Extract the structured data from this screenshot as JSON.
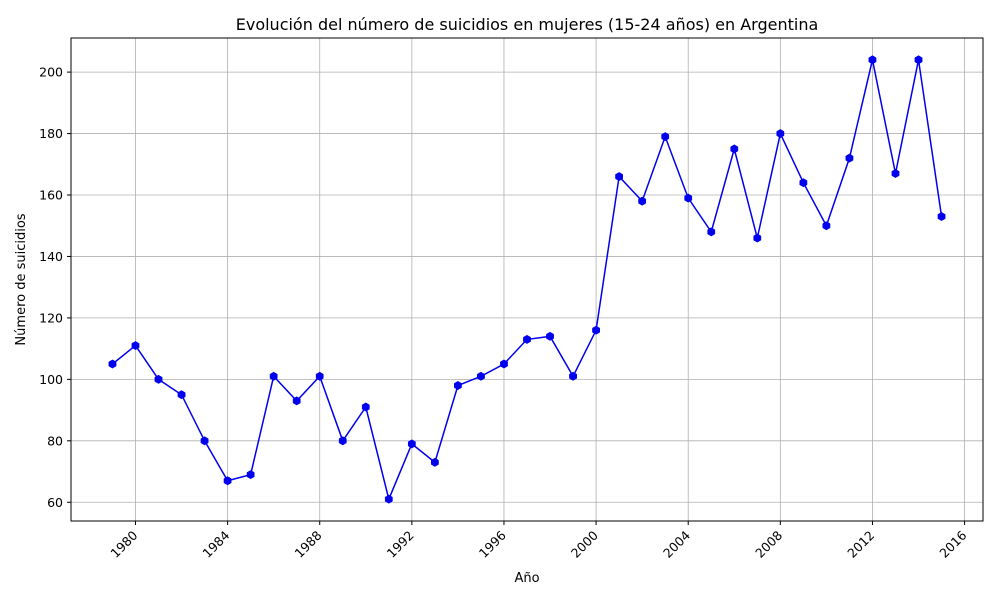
{
  "chart_data": {
    "type": "line",
    "title": "Evolución del número de suicidios en mujeres (15-24 años) en Argentina",
    "xlabel": "Año",
    "ylabel": "Número de suicidios",
    "xlim": [
      1977.2,
      2016.8
    ],
    "ylim": [
      53.9,
      211.1
    ],
    "x_ticks": [
      1980,
      1984,
      1988,
      1992,
      1996,
      2000,
      2004,
      2008,
      2012,
      2016
    ],
    "y_ticks": [
      60,
      80,
      100,
      120,
      140,
      160,
      180,
      200
    ],
    "grid": true,
    "line_color": "#0000ee",
    "marker": "hexagon",
    "series": [
      {
        "x": [
          1979,
          1980,
          1981,
          1982,
          1983,
          1984,
          1985,
          1986,
          1987,
          1988,
          1989,
          1990,
          1991,
          1992,
          1993,
          1994,
          1995,
          1996,
          1997,
          1998,
          1999,
          2000,
          2001,
          2002,
          2003,
          2004,
          2005,
          2006,
          2007,
          2008,
          2009,
          2010,
          2011,
          2012,
          2013,
          2014,
          2015
        ],
        "values": [
          105,
          111,
          100,
          95,
          80,
          67,
          69,
          101,
          93,
          101,
          80,
          91,
          61,
          79,
          73,
          98,
          101,
          105,
          113,
          114,
          101,
          116,
          166,
          158,
          179,
          159,
          148,
          175,
          146,
          180,
          164,
          150,
          172,
          204,
          167,
          204,
          153
        ]
      }
    ]
  }
}
